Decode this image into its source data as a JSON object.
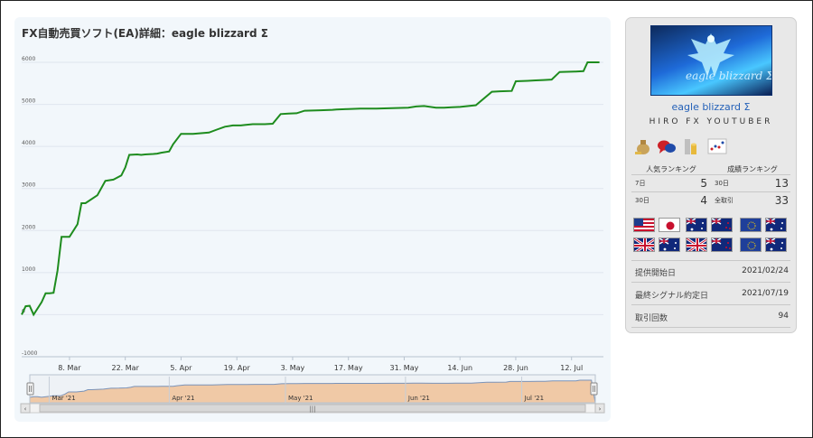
{
  "chart_title": "FX自動売買ソフト(EA)詳細：eagle blizzard Σ",
  "chart_data": {
    "type": "line",
    "x_dates": [
      "2021-02-24",
      "2021-02-25",
      "2021-02-26",
      "2021-02-27",
      "2021-03-01",
      "2021-03-02",
      "2021-03-03",
      "2021-03-04",
      "2021-03-05",
      "2021-03-06",
      "2021-03-08",
      "2021-03-10",
      "2021-03-11",
      "2021-03-12",
      "2021-03-15",
      "2021-03-17",
      "2021-03-19",
      "2021-03-21",
      "2021-03-22",
      "2021-03-23",
      "2021-03-25",
      "2021-03-26",
      "2021-03-27",
      "2021-03-29",
      "2021-03-30",
      "2021-03-31",
      "2021-04-02",
      "2021-04-03",
      "2021-04-05",
      "2021-04-08",
      "2021-04-12",
      "2021-04-14",
      "2021-04-16",
      "2021-04-18",
      "2021-04-20",
      "2021-04-21",
      "2021-04-23",
      "2021-04-26",
      "2021-04-28",
      "2021-04-30",
      "2021-05-02",
      "2021-05-04",
      "2021-05-06",
      "2021-05-10",
      "2021-05-13",
      "2021-05-14",
      "2021-05-17",
      "2021-05-20",
      "2021-05-24",
      "2021-05-28",
      "2021-06-01",
      "2021-06-03",
      "2021-06-05",
      "2021-06-08",
      "2021-06-10",
      "2021-06-12",
      "2021-06-14",
      "2021-06-18",
      "2021-06-22",
      "2021-06-24",
      "2021-06-27",
      "2021-06-28",
      "2021-07-01",
      "2021-07-03",
      "2021-07-05",
      "2021-07-07",
      "2021-07-09",
      "2021-07-13",
      "2021-07-15",
      "2021-07-16",
      "2021-07-19"
    ],
    "y_values": [
      0,
      200,
      210,
      0,
      300,
      510,
      510,
      520,
      1050,
      1850,
      1850,
      2150,
      2650,
      2650,
      2840,
      3180,
      3210,
      3310,
      3500,
      3800,
      3810,
      3800,
      3810,
      3820,
      3830,
      3850,
      3880,
      4050,
      4300,
      4300,
      4330,
      4400,
      4470,
      4500,
      4500,
      4510,
      4530,
      4530,
      4540,
      4770,
      4780,
      4790,
      4850,
      4860,
      4870,
      4880,
      4890,
      4900,
      4900,
      4910,
      4920,
      4950,
      4960,
      4920,
      4920,
      4930,
      4940,
      4980,
      5300,
      5310,
      5320,
      5550,
      5560,
      5570,
      5580,
      5590,
      5770,
      5780,
      5790,
      6000,
      6000
    ],
    "ylim": [
      -1000,
      6000
    ],
    "y_ticks": [
      "6000",
      "5000",
      "4000",
      "3000",
      "2000",
      "1000",
      "0",
      "-1000"
    ],
    "x_ticks": [
      "8. Mar",
      "22. Mar",
      "5. Apr",
      "19. Apr",
      "3. May",
      "17. May",
      "31. May",
      "14. Jun",
      "28. Jun",
      "12. Jul"
    ],
    "navigator_ticks": [
      "Mar '21",
      "Apr '21",
      "May '21",
      "Jun '21",
      "Jul '21"
    ],
    "series_color": "#1e8c1e",
    "grid": true
  },
  "sidebar": {
    "ea_name": "eagle blizzard Σ",
    "author": "HIRO FX YOUTUBER",
    "banner_text": "eagle blizzard Σ",
    "badges": [
      "money-bag-icon",
      "speech-bubbles-icon",
      "coin-stack-icon",
      "dot-chart-icon"
    ],
    "popularity_header": "人気ランキング",
    "performance_header": "成績ランキング",
    "rankings": [
      {
        "label": "7日",
        "value": "5"
      },
      {
        "label": "30日",
        "value": "13"
      },
      {
        "label": "30日",
        "value": "4"
      },
      {
        "label": "全取引",
        "value": "33"
      }
    ],
    "flags": [
      "us",
      "jp",
      "au",
      "nz",
      "eu",
      "au",
      "gb",
      "au",
      "gb",
      "nz",
      "eu",
      "au"
    ],
    "info": [
      {
        "label": "提供開始日",
        "value": "2021/02/24"
      },
      {
        "label": "最終シグナル約定日",
        "value": "2021/07/19"
      },
      {
        "label": "取引回数",
        "value": "94"
      }
    ]
  }
}
